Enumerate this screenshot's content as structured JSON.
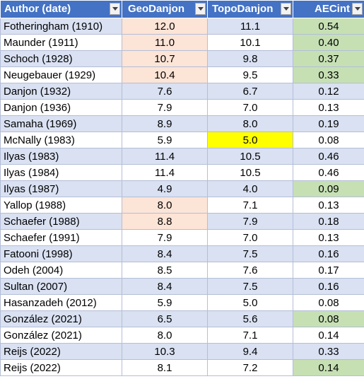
{
  "headers": [
    "Author (date)",
    "GeoDanjon",
    "TopoDanjon",
    "AECint"
  ],
  "colors": {
    "header_bg": "#4472c4",
    "band_bg": "#d9e1f2",
    "peach_highlight": "#fce4d6",
    "green_highlight": "#c6e0b4",
    "yellow_highlight": "#ffff00"
  },
  "rows": [
    {
      "author": "Fotheringham (1910)",
      "geo": "12.0",
      "topo": "11.1",
      "ae": "0.54",
      "hl": [
        "peach",
        "",
        "green"
      ]
    },
    {
      "author": "Maunder (1911)",
      "geo": "11.0",
      "topo": "10.1",
      "ae": "0.40",
      "hl": [
        "peach",
        "",
        "green"
      ]
    },
    {
      "author": "Schoch (1928)",
      "geo": "10.7",
      "topo": "9.8",
      "ae": "0.37",
      "hl": [
        "peach",
        "",
        "green"
      ]
    },
    {
      "author": "Neugebauer (1929)",
      "geo": "10.4",
      "topo": "9.5",
      "ae": "0.33",
      "hl": [
        "peach",
        "",
        "green"
      ]
    },
    {
      "author": "Danjon (1932)",
      "geo": "7.6",
      "topo": "6.7",
      "ae": "0.12",
      "hl": [
        "",
        "",
        ""
      ]
    },
    {
      "author": "Danjon (1936)",
      "geo": "7.9",
      "topo": "7.0",
      "ae": "0.13",
      "hl": [
        "",
        "",
        ""
      ]
    },
    {
      "author": "Samaha (1969)",
      "geo": "8.9",
      "topo": "8.0",
      "ae": "0.19",
      "hl": [
        "",
        "",
        ""
      ]
    },
    {
      "author": "McNally (1983)",
      "geo": "5.9",
      "topo": "5.0",
      "ae": "0.08",
      "hl": [
        "",
        "yellow",
        ""
      ]
    },
    {
      "author": "Ilyas (1983)",
      "geo": "11.4",
      "topo": "10.5",
      "ae": "0.46",
      "hl": [
        "",
        "",
        ""
      ]
    },
    {
      "author": "Ilyas (1984)",
      "geo": "11.4",
      "topo": "10.5",
      "ae": "0.46",
      "hl": [
        "",
        "",
        ""
      ]
    },
    {
      "author": "Ilyas (1987)",
      "geo": "4.9",
      "topo": "4.0",
      "ae": "0.09",
      "hl": [
        "",
        "",
        "green"
      ]
    },
    {
      "author": "Yallop (1988)",
      "geo": "8.0",
      "topo": "7.1",
      "ae": "0.13",
      "hl": [
        "peach",
        "",
        ""
      ]
    },
    {
      "author": "Schaefer (1988)",
      "geo": "8.8",
      "topo": "7.9",
      "ae": "0.18",
      "hl": [
        "peach",
        "",
        ""
      ]
    },
    {
      "author": "Schaefer (1991)",
      "geo": "7.9",
      "topo": "7.0",
      "ae": "0.13",
      "hl": [
        "",
        "",
        ""
      ]
    },
    {
      "author": "Fatooni (1998)",
      "geo": "8.4",
      "topo": "7.5",
      "ae": "0.16",
      "hl": [
        "",
        "",
        ""
      ]
    },
    {
      "author": "Odeh (2004)",
      "geo": "8.5",
      "topo": "7.6",
      "ae": "0.17",
      "hl": [
        "",
        "",
        ""
      ]
    },
    {
      "author": "Sultan (2007)",
      "geo": "8.4",
      "topo": "7.5",
      "ae": "0.16",
      "hl": [
        "",
        "",
        ""
      ]
    },
    {
      "author": "Hasanzadeh (2012)",
      "geo": "5.9",
      "topo": "5.0",
      "ae": "0.08",
      "hl": [
        "",
        "",
        ""
      ]
    },
    {
      "author": "González (2021)",
      "geo": "6.5",
      "topo": "5.6",
      "ae": "0.08",
      "hl": [
        "",
        "",
        "green"
      ]
    },
    {
      "author": "González (2021)",
      "geo": "8.0",
      "topo": "7.1",
      "ae": "0.14",
      "hl": [
        "",
        "",
        ""
      ]
    },
    {
      "author": "Reijs (2022)",
      "geo": "10.3",
      "topo": "9.4",
      "ae": "0.33",
      "hl": [
        "",
        "",
        ""
      ]
    },
    {
      "author": "Reijs (2022)",
      "geo": "8.1",
      "topo": "7.2",
      "ae": "0.14",
      "hl": [
        "",
        "",
        "green"
      ]
    }
  ]
}
